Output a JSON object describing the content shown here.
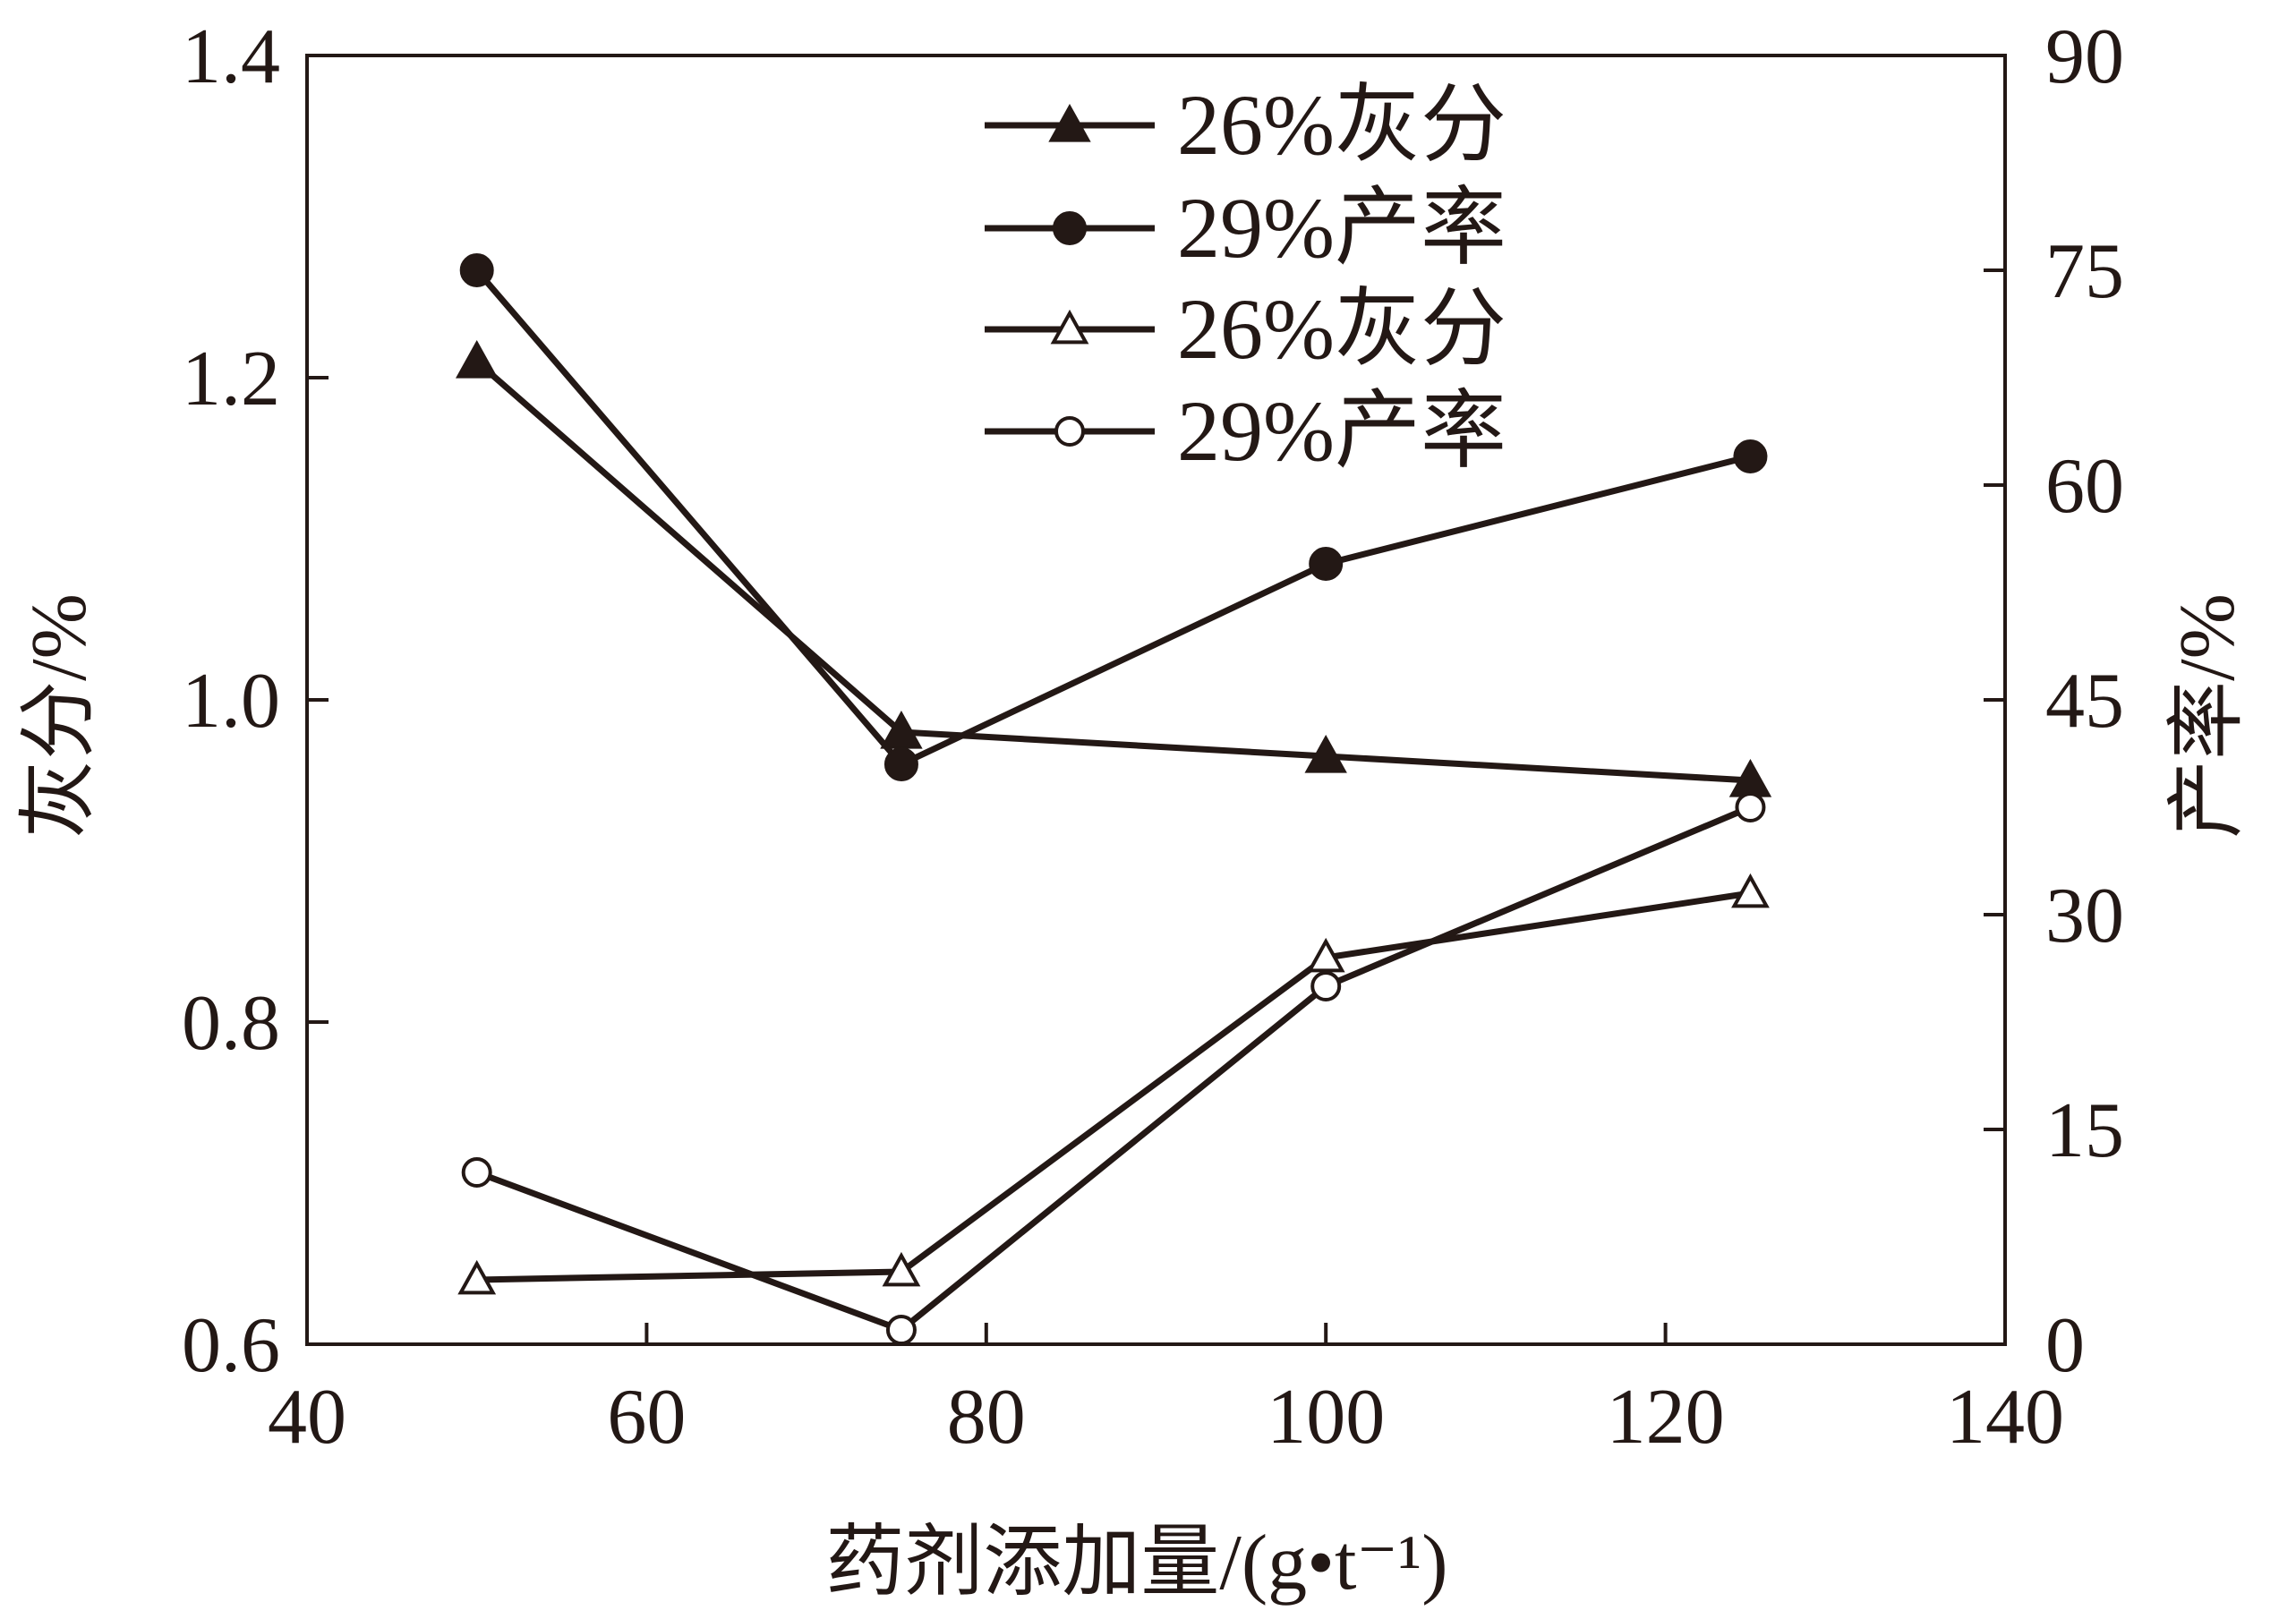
{
  "chart_data": {
    "type": "line",
    "xlabel": "药剂添加量/(g•t⁻¹)",
    "ylabel": "灰分/%",
    "ylabel_right": "产率/%",
    "xlim": [
      40,
      140
    ],
    "ylim": [
      0.6,
      1.4
    ],
    "ylim_right": [
      0,
      90
    ],
    "x_ticks": [
      "40",
      "60",
      "80",
      "100",
      "120",
      "140"
    ],
    "y_ticks": [
      "0.6",
      "0.8",
      "1.0",
      "1.2",
      "1.4"
    ],
    "y_right_ticks": [
      "0",
      "15",
      "30",
      "45",
      "60",
      "75",
      "90"
    ],
    "grid": false,
    "legend_position": "top-center",
    "colors": {
      "line": "#231815",
      "marker_fill": "#231815",
      "hollow_fill": "#ffffff"
    },
    "series": [
      {
        "name": "26%灰分",
        "axis": "left",
        "marker": "filled-triangle",
        "x": [
          50,
          75,
          100,
          125
        ],
        "y": [
          1.21,
          0.98,
          0.965,
          0.95
        ]
      },
      {
        "name": "29%产率",
        "axis": "right",
        "marker": "filled-circle",
        "x": [
          50,
          75,
          100,
          125
        ],
        "y": [
          75,
          40.5,
          54.5,
          62
        ]
      },
      {
        "name": "26%灰分",
        "axis": "left",
        "marker": "hollow-triangle",
        "x": [
          50,
          75,
          100,
          125
        ],
        "y": [
          0.64,
          0.645,
          0.84,
          0.88
        ]
      },
      {
        "name": "29%产率",
        "axis": "right",
        "marker": "hollow-circle",
        "x": [
          50,
          75,
          100,
          125
        ],
        "y": [
          12,
          1,
          25,
          37.5
        ]
      }
    ]
  }
}
